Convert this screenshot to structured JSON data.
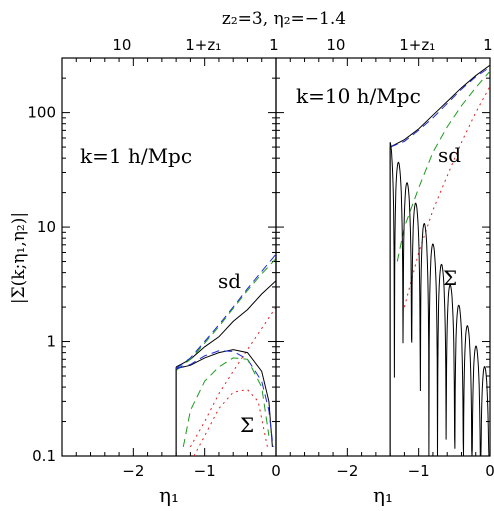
{
  "figure": {
    "top_title": "z₂=3,  η₂=−1.4",
    "ylabel": "|Σ(k;η₁,η₂)|",
    "colors": {
      "black": "#000000",
      "blue": "#1f2bd6",
      "green": "#1f9a1f",
      "red": "#e0201f"
    }
  },
  "chart_data": [
    {
      "type": "line",
      "panel": "left",
      "annotation": "k=1 h/Mpc",
      "labels": {
        "sd": "sd",
        "Sigma": "Σ"
      },
      "xlabel": "η₁",
      "xlim": [
        -3,
        0
      ],
      "ylim": [
        0.1,
        300
      ],
      "yscale": "log",
      "x_ticks": [
        "−2",
        "−1",
        "0"
      ],
      "y_ticks": [
        "0.1",
        "1",
        "10",
        "100"
      ],
      "top_ticks": [
        "10",
        "1+z₁",
        "1"
      ],
      "series": [
        {
          "color": "black",
          "style": "solid",
          "x": [
            -1.4,
            -1.2,
            -1.0,
            -0.8,
            -0.6,
            -0.4,
            -0.2,
            0.0
          ],
          "y": [
            0.6,
            0.7,
            0.9,
            1.1,
            1.5,
            1.9,
            2.6,
            3.4
          ]
        },
        {
          "color": "blue",
          "style": "dashed",
          "x": [
            -1.4,
            -1.2,
            -1.0,
            -0.8,
            -0.6,
            -0.4,
            -0.2,
            0.0
          ],
          "y": [
            0.58,
            0.72,
            1.0,
            1.4,
            2.0,
            2.9,
            4.1,
            5.8
          ]
        },
        {
          "color": "green",
          "style": "dashed",
          "x": [
            -1.4,
            -1.2,
            -1.0,
            -0.8,
            -0.6,
            -0.4,
            -0.2,
            0.0
          ],
          "y": [
            0.56,
            0.7,
            0.97,
            1.35,
            1.95,
            2.8,
            3.9,
            5.3
          ]
        },
        {
          "color": "red",
          "style": "dotted",
          "x": [
            -1.2,
            -1.0,
            -0.8,
            -0.6,
            -0.4,
            -0.2,
            0.0
          ],
          "y": [
            0.12,
            0.2,
            0.35,
            0.55,
            0.85,
            1.3,
            2.0
          ]
        },
        {
          "color": "black",
          "style": "solid",
          "x": [
            -1.4,
            -1.2,
            -1.0,
            -0.8,
            -0.6,
            -0.4,
            -0.2,
            -0.1,
            -0.05
          ],
          "y": [
            0.58,
            0.62,
            0.72,
            0.8,
            0.85,
            0.8,
            0.55,
            0.3,
            0.12
          ]
        },
        {
          "color": "blue",
          "style": "dashed",
          "x": [
            -1.4,
            -1.2,
            -1.0,
            -0.8,
            -0.6,
            -0.4,
            -0.2,
            -0.1,
            -0.04
          ],
          "y": [
            0.58,
            0.63,
            0.75,
            0.83,
            0.82,
            0.7,
            0.45,
            0.25,
            0.12
          ]
        },
        {
          "color": "green",
          "style": "dashed",
          "x": [
            -1.3,
            -1.2,
            -1.0,
            -0.8,
            -0.6,
            -0.4,
            -0.2,
            -0.1
          ],
          "y": [
            0.12,
            0.25,
            0.45,
            0.6,
            0.72,
            0.7,
            0.4,
            0.15
          ]
        },
        {
          "color": "red",
          "style": "dotted",
          "x": [
            -1.15,
            -1.0,
            -0.8,
            -0.6,
            -0.4,
            -0.25,
            -0.12
          ],
          "y": [
            0.1,
            0.15,
            0.26,
            0.36,
            0.38,
            0.3,
            0.12
          ]
        }
      ]
    },
    {
      "type": "line",
      "panel": "right",
      "annotation": "k=10 h/Mpc",
      "labels": {
        "sd": "sd",
        "Sigma": "Σ"
      },
      "xlabel": "η₁",
      "xlim": [
        -3,
        0
      ],
      "ylim": [
        0.1,
        300
      ],
      "yscale": "log",
      "x_ticks": [
        "−2",
        "−1",
        "0"
      ],
      "top_ticks": [
        "10",
        "1+z₁",
        "1"
      ],
      "series": [
        {
          "color": "black",
          "style": "solid",
          "x": [
            -1.4,
            -1.2,
            -1.0,
            -0.8,
            -0.6,
            -0.4,
            -0.2,
            0.0
          ],
          "y": [
            50,
            58,
            72,
            95,
            125,
            165,
            210,
            260
          ]
        },
        {
          "color": "blue",
          "style": "dashed",
          "x": [
            -1.4,
            -1.2,
            -1.0,
            -0.8,
            -0.6,
            -0.4,
            -0.2,
            0.0
          ],
          "y": [
            50,
            56,
            70,
            90,
            120,
            160,
            205,
            250
          ]
        },
        {
          "color": "green",
          "style": "dashed",
          "x": [
            -1.3,
            -1.2,
            -1.0,
            -0.8,
            -0.6,
            -0.4,
            -0.2,
            0.0
          ],
          "y": [
            5,
            10,
            22,
            45,
            75,
            115,
            165,
            230
          ]
        },
        {
          "color": "red",
          "style": "dotted",
          "x": [
            -1.2,
            -1.0,
            -0.8,
            -0.6,
            -0.4,
            -0.2,
            0.0
          ],
          "y": [
            2,
            6,
            14,
            28,
            55,
            100,
            170
          ]
        },
        {
          "color": "black",
          "style": "oscillating",
          "name": "Σ black",
          "x": [
            -1.4,
            -1.35,
            -1.3,
            -1.25,
            -1.2,
            -1.15,
            -1.1,
            -1.05,
            -1.0
          ],
          "y": [
            55,
            40,
            0.1,
            3,
            10,
            0.1,
            8,
            5,
            0.1
          ]
        }
      ]
    }
  ]
}
